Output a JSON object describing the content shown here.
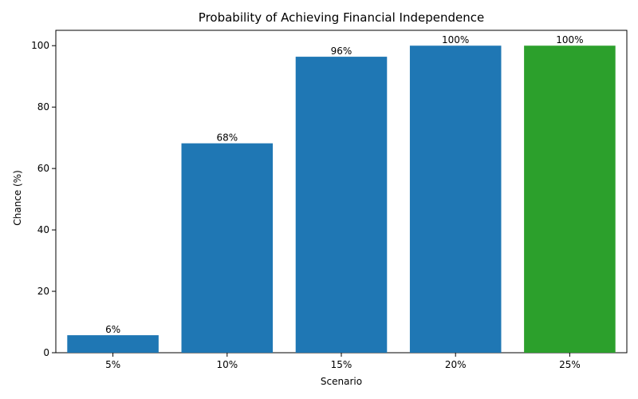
{
  "chart_data": {
    "type": "bar",
    "title": "Probability of Achieving Financial Independence",
    "xlabel": "Scenario",
    "ylabel": "Chance (%)",
    "categories": [
      "5%",
      "10%",
      "15%",
      "20%",
      "25%"
    ],
    "values": [
      5.7,
      68.2,
      96.4,
      100,
      100
    ],
    "data_labels": [
      "6%",
      "68%",
      "96%",
      "100%",
      "100%"
    ],
    "bar_colors": [
      "#1f77b4",
      "#1f77b4",
      "#1f77b4",
      "#1f77b4",
      "#2ca02c"
    ],
    "ylim": [
      0,
      105
    ],
    "yticks": [
      0,
      20,
      40,
      60,
      80,
      100
    ],
    "grid": false,
    "legend": "none"
  }
}
